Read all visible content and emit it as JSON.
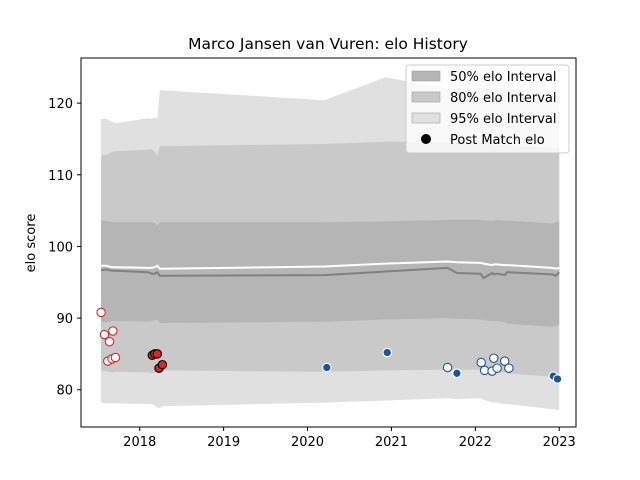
{
  "chart_data": {
    "type": "line",
    "title": "Marco Jansen van Vuren: elo History",
    "xlabel": "",
    "ylabel": "elo score",
    "xlim": [
      2017.3,
      2023.2
    ],
    "ylim": [
      74.8,
      126.3
    ],
    "x_ticks": [
      2018,
      2019,
      2020,
      2021,
      2022,
      2023
    ],
    "x_tick_labels": [
      "2018",
      "2019",
      "2020",
      "2021",
      "2022",
      "2023"
    ],
    "y_ticks": [
      80,
      90,
      100,
      110,
      120
    ],
    "y_tick_labels": [
      "80",
      "90",
      "100",
      "110",
      "120"
    ],
    "grid": false,
    "legend_position": "top-right",
    "legend": [
      {
        "label": "50% elo Interval",
        "kind": "band",
        "color": "#b5b5b5"
      },
      {
        "label": "80% elo Interval",
        "kind": "band",
        "color": "#c9c9c9"
      },
      {
        "label": "95% elo Interval",
        "kind": "band",
        "color": "#e0e0e0"
      },
      {
        "label": "Post Match elo",
        "kind": "marker",
        "color": "#000000"
      }
    ],
    "x": [
      2017.54,
      2017.6,
      2017.67,
      2017.72,
      2018.1,
      2018.14,
      2018.18,
      2018.21,
      2018.24,
      2018.27,
      2020.2,
      2020.93,
      2021.67,
      2021.78,
      2022.06,
      2022.1,
      2022.2,
      2022.22,
      2022.26,
      2022.35,
      2022.38,
      2022.92,
      2022.96,
      2023.0
    ],
    "bands": {
      "p95_upper": [
        117.8,
        117.8,
        117.4,
        117.2,
        117.9,
        117.8,
        118.0,
        117.8,
        121.8,
        121.8,
        120.4,
        123.6,
        122.0,
        122.0,
        122.1,
        122.0,
        122.1,
        122.2,
        122.2,
        122.0,
        122.0,
        121.2,
        121.1,
        121.0
      ],
      "p80_upper": [
        112.7,
        112.8,
        113.2,
        113.3,
        113.5,
        113.6,
        113.2,
        112.6,
        114.0,
        114.0,
        114.3,
        114.6,
        114.6,
        114.5,
        114.5,
        114.6,
        114.2,
        114.2,
        114.1,
        114.1,
        114.0,
        113.8,
        113.8,
        113.8
      ],
      "p50_upper": [
        103.6,
        103.6,
        103.4,
        103.4,
        103.4,
        103.4,
        103.3,
        102.9,
        103.4,
        103.4,
        103.4,
        103.5,
        103.7,
        103.7,
        103.7,
        103.6,
        103.6,
        103.6,
        103.7,
        103.6,
        103.6,
        103.2,
        103.4,
        103.5
      ],
      "mean": [
        97.3,
        97.3,
        97.1,
        97.1,
        97.0,
        97.0,
        97.1,
        97.3,
        96.9,
        96.9,
        97.2,
        97.6,
        97.9,
        97.8,
        97.7,
        97.6,
        97.4,
        97.5,
        97.5,
        97.4,
        97.4,
        97.0,
        96.9,
        97.0
      ],
      "median": [
        96.7,
        96.8,
        96.6,
        96.6,
        96.4,
        96.2,
        96.2,
        96.4,
        95.9,
        95.9,
        96.0,
        96.5,
        97.0,
        96.3,
        96.2,
        95.6,
        96.3,
        96.1,
        96.2,
        96.0,
        96.4,
        96.1,
        95.9,
        96.4
      ],
      "p50_lower": [
        89.4,
        89.4,
        89.6,
        89.6,
        89.5,
        89.6,
        89.7,
        89.8,
        89.3,
        89.3,
        89.5,
        89.8,
        90.0,
        89.9,
        89.8,
        89.7,
        89.6,
        89.6,
        89.6,
        89.4,
        89.2,
        88.8,
        88.9,
        89.1
      ],
      "p80_lower": [
        82.6,
        82.6,
        82.4,
        82.5,
        82.4,
        82.3,
        82.4,
        82.4,
        82.7,
        82.7,
        82.5,
        82.7,
        82.8,
        82.8,
        82.8,
        82.5,
        82.5,
        82.5,
        82.5,
        82.4,
        82.3,
        81.8,
        81.6,
        81.7
      ],
      "p95_lower": [
        78.2,
        78.1,
        78.1,
        78.1,
        78.0,
        78.0,
        77.8,
        77.5,
        77.5,
        77.7,
        78.2,
        78.5,
        78.8,
        78.7,
        78.8,
        78.6,
        78.2,
        78.2,
        78.2,
        78.0,
        78.0,
        77.3,
        77.2,
        77.1
      ]
    },
    "series": [
      {
        "style": "hollow red markers",
        "fill": "#ffffff",
        "edge": "#d62728",
        "points": [
          [
            2017.54,
            90.8
          ],
          [
            2017.58,
            87.7
          ],
          [
            2017.62,
            84.0
          ],
          [
            2017.64,
            86.7
          ],
          [
            2017.67,
            84.3
          ],
          [
            2017.68,
            88.2
          ],
          [
            2017.71,
            84.5
          ]
        ]
      },
      {
        "style": "filled red markers",
        "fill": "#d62728",
        "edge": "#000000",
        "points": [
          [
            2018.15,
            84.8
          ],
          [
            2018.18,
            85.0
          ],
          [
            2018.21,
            85.0
          ],
          [
            2018.23,
            83.0
          ],
          [
            2018.27,
            83.5
          ]
        ]
      },
      {
        "style": "filled blue markers",
        "fill": "#1f5594",
        "edge": "#ffffff",
        "points": [
          [
            2020.23,
            83.1
          ],
          [
            2020.95,
            85.2
          ],
          [
            2021.78,
            82.3
          ],
          [
            2022.93,
            81.9
          ],
          [
            2022.98,
            81.5
          ]
        ]
      },
      {
        "style": "hollow blue markers",
        "fill": "#ffffff",
        "edge": "#1f5594",
        "points": [
          [
            2021.67,
            83.1
          ],
          [
            2022.07,
            83.8
          ],
          [
            2022.11,
            82.7
          ],
          [
            2022.2,
            82.6
          ],
          [
            2022.22,
            84.4
          ],
          [
            2022.26,
            83.0
          ],
          [
            2022.35,
            84.0
          ],
          [
            2022.4,
            83.0
          ]
        ]
      }
    ],
    "colors": {
      "band95": "#e0e0e0",
      "band80": "#c9c9c9",
      "band50": "#b5b5b5",
      "mean_line": "#ffffff",
      "median_line": "#808080"
    }
  }
}
